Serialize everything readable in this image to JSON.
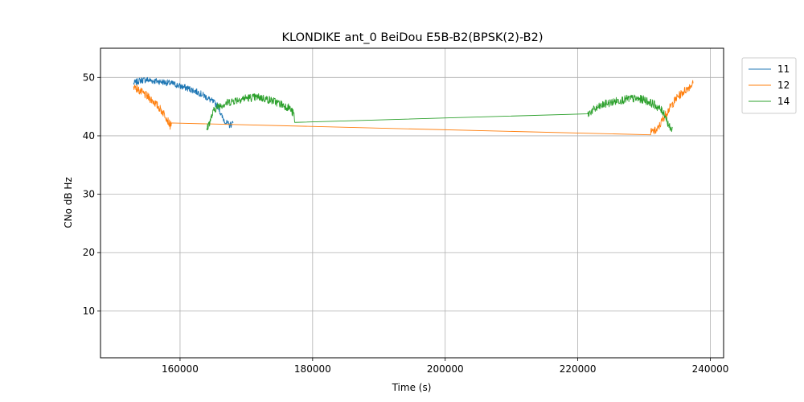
{
  "chart_data": {
    "type": "line",
    "title": "KLONDIKE ant_0 BeiDou E5B-B2(BPSK(2)-B2)",
    "xlabel": "Time (s)",
    "ylabel": "CNo dB Hz",
    "xlim": [
      148000,
      242000
    ],
    "ylim": [
      2,
      55
    ],
    "xticks": [
      160000,
      180000,
      200000,
      220000,
      240000
    ],
    "yticks": [
      10,
      20,
      30,
      40,
      50
    ],
    "grid": true,
    "legend_position": "outside-top-right",
    "series": [
      {
        "name": "11",
        "color": "#1f77b4",
        "noise": 0.55,
        "points": [
          [
            153000,
            49.0
          ],
          [
            154000,
            49.5
          ],
          [
            155000,
            49.6
          ],
          [
            156000,
            49.4
          ],
          [
            157000,
            49.3
          ],
          [
            158000,
            49.1
          ],
          [
            159000,
            48.9
          ],
          [
            160000,
            48.5
          ],
          [
            161000,
            48.2
          ],
          [
            162000,
            47.8
          ],
          [
            163000,
            47.3
          ],
          [
            164000,
            46.6
          ],
          [
            165000,
            45.8
          ],
          [
            165800,
            45.0
          ],
          [
            166200,
            43.5
          ],
          [
            166600,
            42.8
          ],
          [
            167000,
            42.2
          ],
          [
            167500,
            41.8
          ],
          [
            168000,
            42.2
          ]
        ]
      },
      {
        "name": "12",
        "color": "#ff7f0e",
        "noise": 0.7,
        "points": [
          [
            153000,
            48.6
          ],
          [
            154000,
            47.6
          ],
          [
            155000,
            46.8
          ],
          [
            156000,
            45.9
          ],
          [
            157000,
            44.6
          ],
          [
            157800,
            43.5
          ],
          [
            158500,
            41.8
          ],
          [
            158700,
            42.2
          ],
          [
            231000,
            40.6
          ],
          [
            232000,
            41.0
          ],
          [
            233000,
            43.2
          ],
          [
            234000,
            45.0
          ],
          [
            235000,
            46.6
          ],
          [
            236000,
            47.6
          ],
          [
            237000,
            48.6
          ],
          [
            237400,
            49.0
          ]
        ]
      },
      {
        "name": "14",
        "color": "#2ca02c",
        "noise": 0.7,
        "points": [
          [
            164000,
            41.0
          ],
          [
            164500,
            42.5
          ],
          [
            165200,
            44.6
          ],
          [
            166000,
            45.2
          ],
          [
            168000,
            46.0
          ],
          [
            170000,
            46.5
          ],
          [
            172000,
            46.6
          ],
          [
            174000,
            46.0
          ],
          [
            175500,
            45.3
          ],
          [
            176500,
            44.8
          ],
          [
            177200,
            43.6
          ],
          [
            177300,
            42.3
          ],
          [
            221500,
            43.6
          ],
          [
            222000,
            44.2
          ],
          [
            224000,
            45.4
          ],
          [
            226000,
            46.0
          ],
          [
            228000,
            46.4
          ],
          [
            230000,
            46.2
          ],
          [
            231500,
            45.4
          ],
          [
            233000,
            44.0
          ],
          [
            234000,
            41.0
          ],
          [
            234300,
            41.5
          ]
        ]
      }
    ]
  }
}
